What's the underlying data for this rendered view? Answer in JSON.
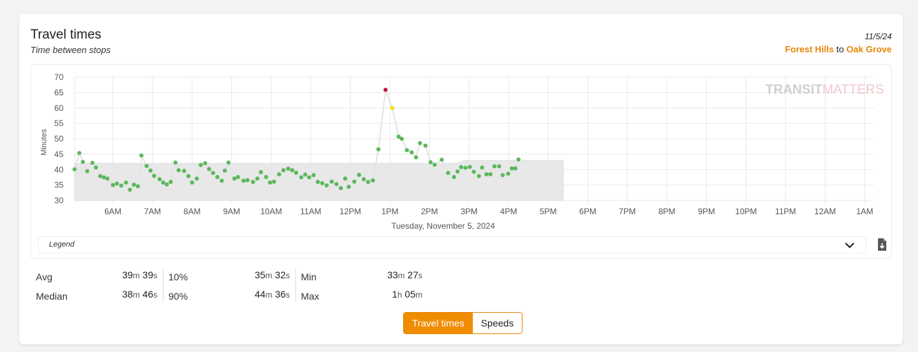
{
  "header": {
    "title": "Travel times",
    "subtitle": "Time between stops",
    "date": "11/5/24",
    "from": "Forest Hills",
    "to_word": "to",
    "to": "Oak Grove"
  },
  "legend": {
    "label": "Legend"
  },
  "watermark": {
    "part1": "TRANSIT",
    "part2": "MATTERS"
  },
  "stats": [
    {
      "label": "Avg",
      "value": "39",
      "unit": "m",
      "value2": "39",
      "unit2": "s"
    },
    {
      "label": "Median",
      "value": "38",
      "unit": "m",
      "value2": "46",
      "unit2": "s"
    },
    {
      "label": "10%",
      "value": "35",
      "unit": "m",
      "value2": "32",
      "unit2": "s"
    },
    {
      "label": "90%",
      "value": "44",
      "unit": "m",
      "value2": "36",
      "unit2": "s"
    },
    {
      "label": "Min",
      "value": "33",
      "unit": "m",
      "value2": "27",
      "unit2": "s"
    },
    {
      "label": "Max",
      "value": "1",
      "unit": "h",
      "value2": "05",
      "unit2": "m"
    }
  ],
  "toggle": {
    "active": "Travel times",
    "inactive": "Speeds"
  },
  "colors": {
    "accent": "#f08c00",
    "point_normal": "#5cb85c",
    "point_warn": "#f5e20a",
    "point_bad": "#c0163a",
    "band": "#e8e8e8",
    "line": "#e4e4e4"
  },
  "chart_data": {
    "type": "scatter",
    "xlabel": "Tuesday, November 5, 2024",
    "ylabel": "Minutes",
    "ylim": [
      30,
      70
    ],
    "yticks": [
      30,
      35,
      40,
      45,
      50,
      55,
      60,
      65,
      70
    ],
    "xlim_hours": [
      5.03,
      25.23
    ],
    "xticks": [
      {
        "h": 6,
        "label": "6AM"
      },
      {
        "h": 7,
        "label": "7AM"
      },
      {
        "h": 8,
        "label": "8AM"
      },
      {
        "h": 9,
        "label": "9AM"
      },
      {
        "h": 10,
        "label": "10AM"
      },
      {
        "h": 11,
        "label": "11AM"
      },
      {
        "h": 12,
        "label": "12PM"
      },
      {
        "h": 13,
        "label": "1PM"
      },
      {
        "h": 14,
        "label": "2PM"
      },
      {
        "h": 15,
        "label": "3PM"
      },
      {
        "h": 16,
        "label": "4PM"
      },
      {
        "h": 17,
        "label": "5PM"
      },
      {
        "h": 18,
        "label": "6PM"
      },
      {
        "h": 19,
        "label": "7PM"
      },
      {
        "h": 20,
        "label": "8PM"
      },
      {
        "h": 21,
        "label": "9PM"
      },
      {
        "h": 22,
        "label": "10PM"
      },
      {
        "h": 23,
        "label": "11PM"
      },
      {
        "h": 24,
        "label": "12AM"
      },
      {
        "h": 25,
        "label": "1AM"
      }
    ],
    "grid": true,
    "benchmark_band": [
      [
        5.03,
        42
      ],
      [
        14.68,
        42
      ],
      [
        14.88,
        43
      ],
      [
        17.38,
        43
      ]
    ],
    "points": [
      [
        5.03,
        40.1
      ],
      [
        5.15,
        45.4
      ],
      [
        5.24,
        42.5
      ],
      [
        5.35,
        39.5
      ],
      [
        5.48,
        42.2
      ],
      [
        5.57,
        40.7
      ],
      [
        5.68,
        37.9
      ],
      [
        5.77,
        37.5
      ],
      [
        5.86,
        37.1
      ],
      [
        6.0,
        35.0
      ],
      [
        6.1,
        35.5
      ],
      [
        6.21,
        34.8
      ],
      [
        6.33,
        35.8
      ],
      [
        6.43,
        33.5
      ],
      [
        6.53,
        35.1
      ],
      [
        6.63,
        34.6
      ],
      [
        6.72,
        44.6
      ],
      [
        6.85,
        41.2
      ],
      [
        6.95,
        39.7
      ],
      [
        7.04,
        38.0
      ],
      [
        7.18,
        36.9
      ],
      [
        7.27,
        35.8
      ],
      [
        7.36,
        35.2
      ],
      [
        7.46,
        36.0
      ],
      [
        7.58,
        42.3
      ],
      [
        7.66,
        39.8
      ],
      [
        7.8,
        39.6
      ],
      [
        7.91,
        37.9
      ],
      [
        8.0,
        35.8
      ],
      [
        8.12,
        37.1
      ],
      [
        8.22,
        41.5
      ],
      [
        8.33,
        42.1
      ],
      [
        8.43,
        40.2
      ],
      [
        8.53,
        38.9
      ],
      [
        8.64,
        37.6
      ],
      [
        8.75,
        36.4
      ],
      [
        8.83,
        39.7
      ],
      [
        8.92,
        42.3
      ],
      [
        9.07,
        37.1
      ],
      [
        9.16,
        37.6
      ],
      [
        9.3,
        36.4
      ],
      [
        9.4,
        36.6
      ],
      [
        9.54,
        36.0
      ],
      [
        9.65,
        37.1
      ],
      [
        9.74,
        39.2
      ],
      [
        9.87,
        37.6
      ],
      [
        9.97,
        35.8
      ],
      [
        10.07,
        36.1
      ],
      [
        10.2,
        38.5
      ],
      [
        10.31,
        39.8
      ],
      [
        10.43,
        40.3
      ],
      [
        10.53,
        39.8
      ],
      [
        10.63,
        39.0
      ],
      [
        10.76,
        37.5
      ],
      [
        10.86,
        38.4
      ],
      [
        10.96,
        37.5
      ],
      [
        11.07,
        38.2
      ],
      [
        11.18,
        36.0
      ],
      [
        11.29,
        35.6
      ],
      [
        11.4,
        34.9
      ],
      [
        11.53,
        36.1
      ],
      [
        11.65,
        35.3
      ],
      [
        11.76,
        34.0
      ],
      [
        11.87,
        37.1
      ],
      [
        11.96,
        34.4
      ],
      [
        12.1,
        36.1
      ],
      [
        12.22,
        38.3
      ],
      [
        12.34,
        36.9
      ],
      [
        12.45,
        36.0
      ],
      [
        12.57,
        36.5
      ],
      [
        12.71,
        46.6
      ],
      [
        12.89,
        65.9
      ],
      [
        13.06,
        60.0
      ],
      [
        13.22,
        50.7
      ],
      [
        13.3,
        50.0
      ],
      [
        13.43,
        46.3
      ],
      [
        13.55,
        45.6
      ],
      [
        13.66,
        44.0
      ],
      [
        13.76,
        48.6
      ],
      [
        13.9,
        47.8
      ],
      [
        14.03,
        42.4
      ],
      [
        14.13,
        41.6
      ],
      [
        14.31,
        43.2
      ],
      [
        14.47,
        38.9
      ],
      [
        14.62,
        37.6
      ],
      [
        14.71,
        39.4
      ],
      [
        14.8,
        40.8
      ],
      [
        14.91,
        40.6
      ],
      [
        15.02,
        40.9
      ],
      [
        15.12,
        39.3
      ],
      [
        15.25,
        37.9
      ],
      [
        15.33,
        40.7
      ],
      [
        15.44,
        38.5
      ],
      [
        15.54,
        38.5
      ],
      [
        15.64,
        41.1
      ],
      [
        15.76,
        41.1
      ],
      [
        15.85,
        38.2
      ],
      [
        15.99,
        38.7
      ],
      [
        16.08,
        40.4
      ],
      [
        16.17,
        40.4
      ],
      [
        16.25,
        43.3
      ]
    ],
    "highlight": [
      {
        "x": 12.89,
        "y": 65.9,
        "level": "bad"
      },
      {
        "x": 13.06,
        "y": 60.0,
        "level": "warn"
      }
    ]
  }
}
